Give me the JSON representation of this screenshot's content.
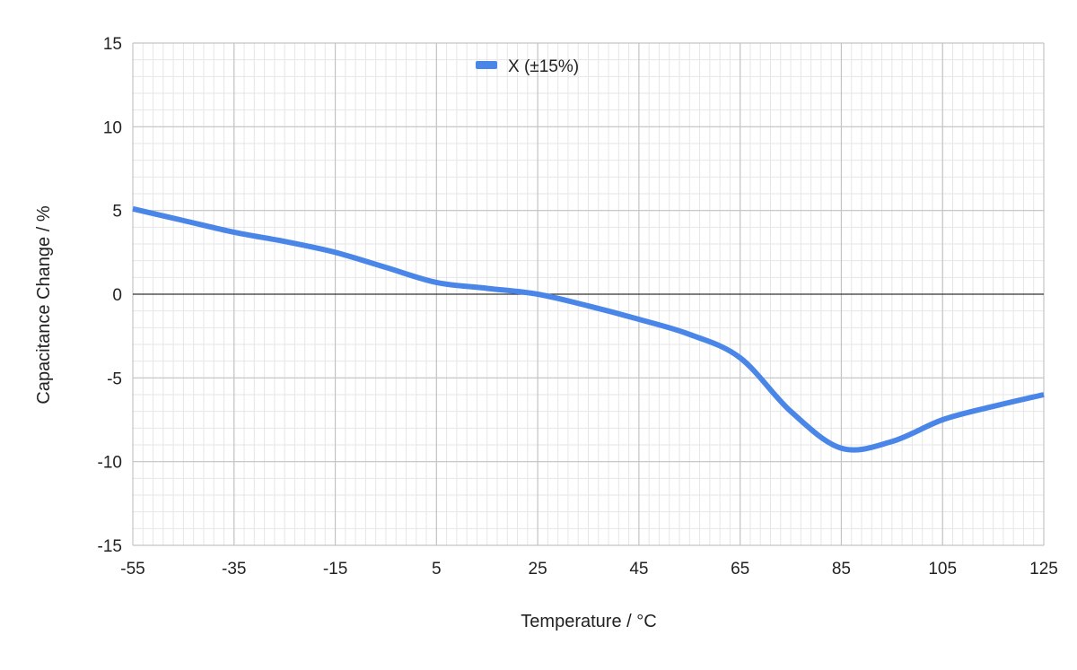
{
  "chart_data": {
    "type": "line",
    "title": "",
    "xlabel": "Temperature / °C",
    "ylabel": "Capacitance Change / %",
    "xlim": [
      -55,
      125
    ],
    "ylim": [
      -15,
      15
    ],
    "x_ticks": [
      -55,
      -35,
      -15,
      5,
      25,
      45,
      65,
      85,
      105,
      125
    ],
    "y_ticks": [
      15,
      10,
      5,
      0,
      -5,
      -10,
      -15
    ],
    "x_tick_labels": [
      "-55",
      "-35",
      "-15",
      "5",
      "25",
      "45",
      "65",
      "85",
      "105",
      "125"
    ],
    "y_tick_labels": [
      "15",
      "10",
      "5",
      "0",
      "-5",
      "-10",
      "-15"
    ],
    "grid": true,
    "minor_grid": true,
    "legend_position": "top-center",
    "series": [
      {
        "name": "X (±15%)",
        "color": "#4a86e8",
        "x": [
          -55,
          -45,
          -35,
          -25,
          -15,
          -5,
          5,
          15,
          25,
          35,
          45,
          55,
          65,
          75,
          85,
          95,
          105,
          115,
          125
        ],
        "y": [
          5.1,
          4.4,
          3.7,
          3.15,
          2.5,
          1.6,
          0.7,
          0.35,
          0.0,
          -0.7,
          -1.5,
          -2.4,
          -3.8,
          -7.0,
          -9.2,
          -8.8,
          -7.5,
          -6.7,
          -6.0
        ]
      }
    ]
  }
}
